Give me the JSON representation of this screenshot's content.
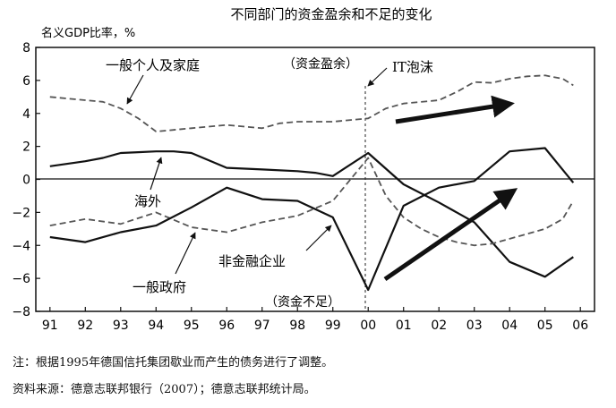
{
  "chart_data": {
    "type": "line",
    "title": "不同部门的资金盈余和不足的变化",
    "ylabel": "名义GDP比率，%",
    "ylim": [
      -8,
      8
    ],
    "yticks": [
      -8,
      -6,
      -4,
      -2,
      0,
      2,
      4,
      6,
      8
    ],
    "x_tick_labels": [
      "91",
      "92",
      "93",
      "94",
      "95",
      "96",
      "97",
      "98",
      "99",
      "00",
      "01",
      "02",
      "03",
      "04",
      "05",
      "06"
    ],
    "x_start_year": 1991,
    "series": [
      {
        "name": "一般个人及家庭",
        "style": "dashed",
        "x": [
          1991.0,
          1992.0,
          1992.5,
          1993.0,
          1993.5,
          1994.0,
          1995.0,
          1996.0,
          1996.5,
          1997.0,
          1997.5,
          1998.0,
          1999.0,
          2000.0,
          2000.5,
          2001.0,
          2002.0,
          2002.5,
          2003.0,
          2003.5,
          2004.0,
          2004.5,
          2005.0,
          2005.5,
          2005.8
        ],
        "y": [
          5.0,
          4.8,
          4.7,
          4.3,
          3.7,
          2.9,
          3.1,
          3.3,
          3.2,
          3.1,
          3.4,
          3.5,
          3.5,
          3.7,
          4.3,
          4.6,
          4.8,
          5.3,
          5.9,
          5.85,
          6.1,
          6.25,
          6.3,
          6.1,
          5.7
        ]
      },
      {
        "name": "海外",
        "style": "solid",
        "x": [
          1991.0,
          1992.0,
          1992.5,
          1993.0,
          1993.5,
          1994.0,
          1994.5,
          1995.0,
          1996.0,
          1997.0,
          1998.0,
          1998.5,
          1999.0,
          2000.0,
          2001.0,
          2002.0,
          2003.0,
          2004.0,
          2005.0,
          2005.8
        ],
        "y": [
          0.8,
          1.1,
          1.3,
          1.6,
          1.65,
          1.7,
          1.7,
          1.6,
          0.7,
          0.6,
          0.5,
          0.4,
          0.2,
          1.6,
          -0.3,
          -1.4,
          -2.6,
          -5.0,
          -5.9,
          -4.7
        ]
      },
      {
        "name": "一般政府",
        "style": "dashed",
        "x": [
          1991.0,
          1992.0,
          1993.0,
          1994.0,
          1995.0,
          1996.0,
          1997.0,
          1998.0,
          1999.0,
          2000.0,
          2000.5,
          2001.0,
          2001.5,
          2002.0,
          2002.5,
          2003.0,
          2003.5,
          2004.0,
          2005.0,
          2005.5,
          2005.8
        ],
        "y": [
          -2.8,
          -2.4,
          -2.7,
          -2.0,
          -2.9,
          -3.2,
          -2.6,
          -2.2,
          -1.3,
          1.3,
          -1.0,
          -2.3,
          -3.0,
          -3.5,
          -3.8,
          -4.0,
          -3.9,
          -3.6,
          -3.0,
          -2.4,
          -1.3
        ]
      },
      {
        "name": "非金融企业",
        "style": "solid",
        "x": [
          1991.0,
          1992.0,
          1993.0,
          1994.0,
          1995.0,
          1996.0,
          1997.0,
          1998.0,
          1999.0,
          2000.0,
          2001.0,
          2002.0,
          2003.0,
          2004.0,
          2005.0,
          2005.8
        ],
        "y": [
          -3.5,
          -3.8,
          -3.2,
          -2.8,
          -1.7,
          -0.5,
          -1.2,
          -1.3,
          -2.3,
          -6.7,
          -1.6,
          -0.5,
          -0.1,
          1.7,
          1.9,
          -0.2
        ]
      }
    ],
    "annotations": {
      "household": "一般个人及家庭",
      "surplus": "（资金盈余）",
      "it_bubble": "IT泡沫",
      "overseas": "海外",
      "nonfin": "非金融企业",
      "government": "一般政府",
      "deficit": "（资金不足）"
    },
    "grid": false,
    "legend": "none"
  },
  "notes": {
    "note": "注：根据1995年德国信托集团歇业而产生的债务进行了调整。",
    "source": "资料来源：德意志联邦银行（2007）；德意志联邦统计局。"
  }
}
